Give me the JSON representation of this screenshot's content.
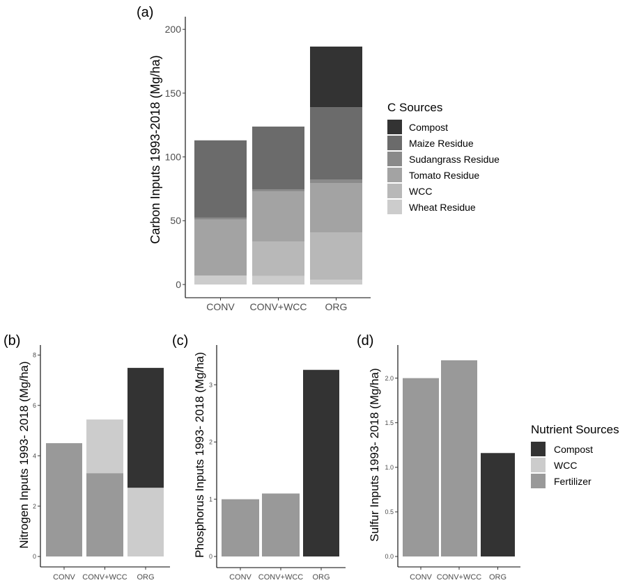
{
  "chart_data": [
    {
      "panel": "(a)",
      "type": "bar",
      "stacked": true,
      "categories": [
        "CONV",
        "CONV+WCC",
        "ORG"
      ],
      "ylabel": "Carbon Inputs 1993-2018 (Mg/ha)",
      "xlabel": "",
      "ylim": [
        0,
        210
      ],
      "yticks": [
        0,
        50,
        100,
        150,
        200
      ],
      "legend": {
        "title": "C Sources",
        "placement": "right"
      },
      "series": [
        {
          "name": "Wheat Residue",
          "color": "#cccccc",
          "values": [
            7,
            6.7,
            3.8
          ]
        },
        {
          "name": "WCC",
          "color": "#b8b8b8",
          "values": [
            0,
            27.1,
            37.1
          ]
        },
        {
          "name": "Tomato Residue",
          "color": "#a3a3a3",
          "values": [
            43.9,
            39.3,
            38.7
          ]
        },
        {
          "name": "Sudangrass Residue",
          "color": "#8a8a8a",
          "values": [
            1.5,
            1.6,
            2.7
          ]
        },
        {
          "name": "Maize Residue",
          "color": "#6b6b6b",
          "values": [
            60.6,
            49.1,
            56.7
          ]
        },
        {
          "name": "Compost",
          "color": "#333333",
          "values": [
            0,
            0,
            47.5
          ]
        }
      ],
      "legend_order": [
        "Compost",
        "Maize Residue",
        "Sudangrass Residue",
        "Tomato Residue",
        "WCC",
        "Wheat Residue"
      ]
    },
    {
      "panel": "(b)",
      "type": "bar",
      "stacked": true,
      "categories": [
        "CONV",
        "CONV+WCC",
        "ORG"
      ],
      "ylabel": "Nitrogen Inputs 1993- 2018 (Mg/ha)",
      "xlabel": "",
      "ylim": [
        0,
        8.4
      ],
      "yticks": [
        0,
        2,
        4,
        6,
        8
      ],
      "series": [
        {
          "name": "Fertilizer",
          "color": "#999999",
          "values": [
            4.5,
            3.31,
            0
          ]
        },
        {
          "name": "WCC",
          "color": "#cccccc",
          "values": [
            0,
            2.13,
            2.73
          ]
        },
        {
          "name": "Compost",
          "color": "#333333",
          "values": [
            0,
            0,
            4.76
          ]
        }
      ]
    },
    {
      "panel": "(c)",
      "type": "bar",
      "stacked": true,
      "categories": [
        "CONV",
        "CONV+WCC",
        "ORG"
      ],
      "ylabel": "Phosphorus Inputs 1993- 2018  (Mg/ha)",
      "xlabel": "",
      "ylim": [
        0,
        3.6
      ],
      "yticks": [
        0,
        1,
        2,
        3
      ],
      "series": [
        {
          "name": "Fertilizer",
          "color": "#999999",
          "values": [
            1.0,
            1.1,
            0
          ]
        },
        {
          "name": "Compost",
          "color": "#333333",
          "values": [
            0,
            0,
            3.26
          ]
        }
      ]
    },
    {
      "panel": "(d)",
      "type": "bar",
      "stacked": true,
      "categories": [
        "CONV",
        "CONV+WCC",
        "ORG"
      ],
      "ylabel": "Sulfur Inputs 1993- 2018 (Mg/ha)",
      "xlabel": "",
      "ylim": [
        0,
        2.3
      ],
      "yticks": [
        "0.0",
        "0.5",
        "1.0",
        "1.5",
        "2.0"
      ],
      "legend": {
        "title": "Nutrient Sources",
        "placement": "right"
      },
      "series": [
        {
          "name": "Fertilizer",
          "color": "#999999",
          "values": [
            2.0,
            2.2,
            0
          ]
        },
        {
          "name": "Compost",
          "color": "#333333",
          "values": [
            0,
            0,
            1.16
          ]
        }
      ],
      "legend_entries": [
        {
          "name": "Compost",
          "color": "#333333"
        },
        {
          "name": "WCC",
          "color": "#cccccc"
        },
        {
          "name": "Fertilizer",
          "color": "#999999"
        }
      ]
    }
  ]
}
